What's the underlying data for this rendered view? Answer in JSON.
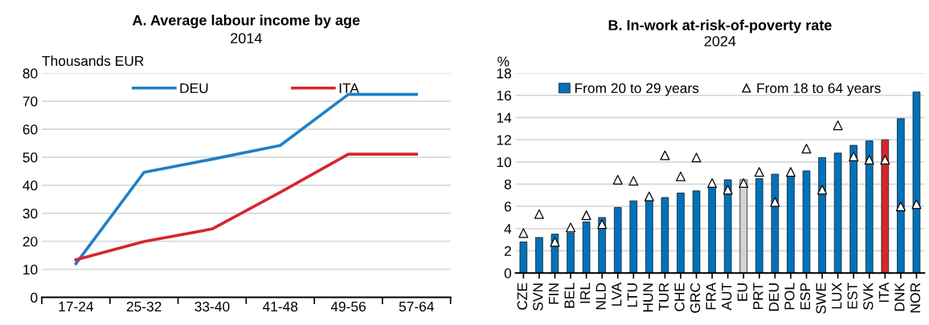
{
  "chart_data": [
    {
      "type": "line",
      "title": "A. Average labour income by age",
      "subtitle": "2014",
      "ylabel": "Thousands EUR",
      "categories": [
        "17-24",
        "25-32",
        "33-40",
        "41-48",
        "49-56",
        "57-64"
      ],
      "series": [
        {
          "name": "DEU",
          "color": "#1f80c6",
          "values": [
            12,
            44.6,
            49.3,
            54.2,
            72.4,
            72.4
          ]
        },
        {
          "name": "ITA",
          "color": "#d7262c",
          "values": [
            13.4,
            19.9,
            24.4,
            37.5,
            51.1,
            51.1
          ]
        }
      ],
      "ylim": [
        0,
        80
      ],
      "yticks": [
        0,
        10,
        20,
        30,
        40,
        50,
        60,
        70,
        80
      ],
      "grid": "y",
      "legend": "top",
      "marker": "none",
      "line_style": "solid"
    },
    {
      "type": "bar",
      "title": "B. In-work at-risk-of-poverty rate",
      "subtitle": "2024",
      "ylabel": "%",
      "categories": [
        "CZE",
        "SVN",
        "FIN",
        "BEL",
        "IRL",
        "NLD",
        "LVA",
        "LTU",
        "HUN",
        "TUR",
        "CHE",
        "GRC",
        "FRA",
        "AUT",
        "EU",
        "PRT",
        "DEU",
        "POL",
        "ESP",
        "SWE",
        "LUX",
        "EST",
        "SVK",
        "ITA",
        "DNK",
        "NOR"
      ],
      "series": [
        {
          "name": "From 20 to 29 years",
          "type": "bar",
          "color": "#0072bc",
          "colors": [
            "#0072bc",
            "#0072bc",
            "#0072bc",
            "#0072bc",
            "#0072bc",
            "#0072bc",
            "#0072bc",
            "#0072bc",
            "#0072bc",
            "#0072bc",
            "#0072bc",
            "#0072bc",
            "#0072bc",
            "#0072bc",
            "#d3d3d3",
            "#0072bc",
            "#0072bc",
            "#0072bc",
            "#0072bc",
            "#0072bc",
            "#0072bc",
            "#0072bc",
            "#0072bc",
            "#d7262c",
            "#0072bc",
            "#0072bc"
          ],
          "values": [
            2.8,
            3.2,
            3.5,
            3.6,
            4.6,
            5.0,
            5.9,
            6.5,
            6.6,
            6.8,
            7.2,
            7.4,
            7.8,
            8.4,
            8.4,
            8.5,
            8.9,
            8.9,
            9.2,
            10.4,
            10.8,
            11.5,
            11.9,
            12.0,
            13.9,
            16.3
          ]
        },
        {
          "name": "From 18 to 64 years",
          "type": "scatter",
          "color": "#ffffff",
          "marker": "triangle",
          "values": [
            3.6,
            5.3,
            2.8,
            4.1,
            5.2,
            4.4,
            8.4,
            8.3,
            6.9,
            10.6,
            8.7,
            10.4,
            8.1,
            7.5,
            8.1,
            9.1,
            6.4,
            9.1,
            11.2,
            7.5,
            13.3,
            10.5,
            10.2,
            10.2,
            6.0,
            6.2
          ]
        }
      ],
      "ylim": [
        0,
        18
      ],
      "yticks": [
        0,
        2,
        4,
        6,
        8,
        10,
        12,
        14,
        16,
        18
      ],
      "grid": "y",
      "legend": "top"
    }
  ]
}
